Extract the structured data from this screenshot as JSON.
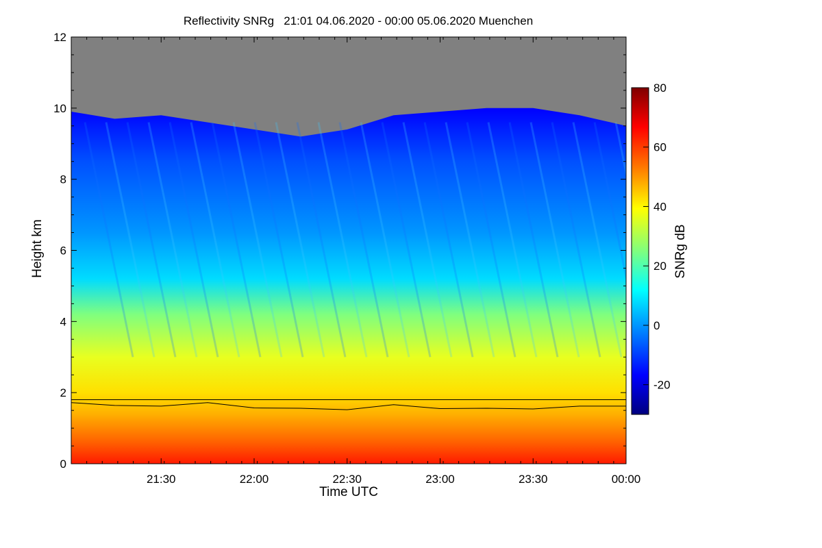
{
  "chart_data": {
    "type": "heatmap",
    "title": "Reflectivity SNRg   21:01 04.06.2020 - 00:00 05.06.2020 Muenchen",
    "xlabel": "Time UTC",
    "ylabel": "Height km",
    "x_range": [
      "21:01",
      "00:00"
    ],
    "x_ticks": [
      "21:30",
      "22:00",
      "22:30",
      "23:00",
      "23:30",
      "00:00"
    ],
    "y_range": [
      0,
      12
    ],
    "y_ticks": [
      "0",
      "2",
      "4",
      "6",
      "8",
      "10",
      "12"
    ],
    "colorbar": {
      "label": "SNRg dB",
      "range": [
        -30,
        80
      ],
      "ticks": [
        "80",
        "60",
        "40",
        "20",
        "0",
        "-20"
      ],
      "colormap": [
        "#00007f",
        "#0000ff",
        "#007fff",
        "#00ffff",
        "#7fff7f",
        "#ffff00",
        "#ff7f00",
        "#ff0000",
        "#7f0000"
      ]
    },
    "no_signal_color": "#808080",
    "signal_top_km": [
      {
        "time": "21:01",
        "height": 9.9
      },
      {
        "time": "21:15",
        "height": 9.7
      },
      {
        "time": "21:30",
        "height": 9.8
      },
      {
        "time": "21:45",
        "height": 9.6
      },
      {
        "time": "22:00",
        "height": 9.4
      },
      {
        "time": "22:15",
        "height": 9.2
      },
      {
        "time": "22:30",
        "height": 9.4
      },
      {
        "time": "22:45",
        "height": 9.8
      },
      {
        "time": "23:00",
        "height": 9.9
      },
      {
        "time": "23:15",
        "height": 10.0
      },
      {
        "time": "23:30",
        "height": 10.0
      },
      {
        "time": "23:45",
        "height": 9.8
      },
      {
        "time": "00:00",
        "height": 9.5
      }
    ],
    "reference_line_km": 1.8,
    "boundary_layer_line_km": [
      {
        "time": "21:01",
        "height": 1.72
      },
      {
        "time": "21:15",
        "height": 1.64
      },
      {
        "time": "21:30",
        "height": 1.62
      },
      {
        "time": "21:45",
        "height": 1.72
      },
      {
        "time": "22:00",
        "height": 1.57
      },
      {
        "time": "22:15",
        "height": 1.56
      },
      {
        "time": "22:30",
        "height": 1.52
      },
      {
        "time": "22:45",
        "height": 1.66
      },
      {
        "time": "23:00",
        "height": 1.55
      },
      {
        "time": "23:15",
        "height": 1.56
      },
      {
        "time": "23:30",
        "height": 1.54
      },
      {
        "time": "23:45",
        "height": 1.62
      },
      {
        "time": "00:00",
        "height": 1.62
      }
    ]
  }
}
